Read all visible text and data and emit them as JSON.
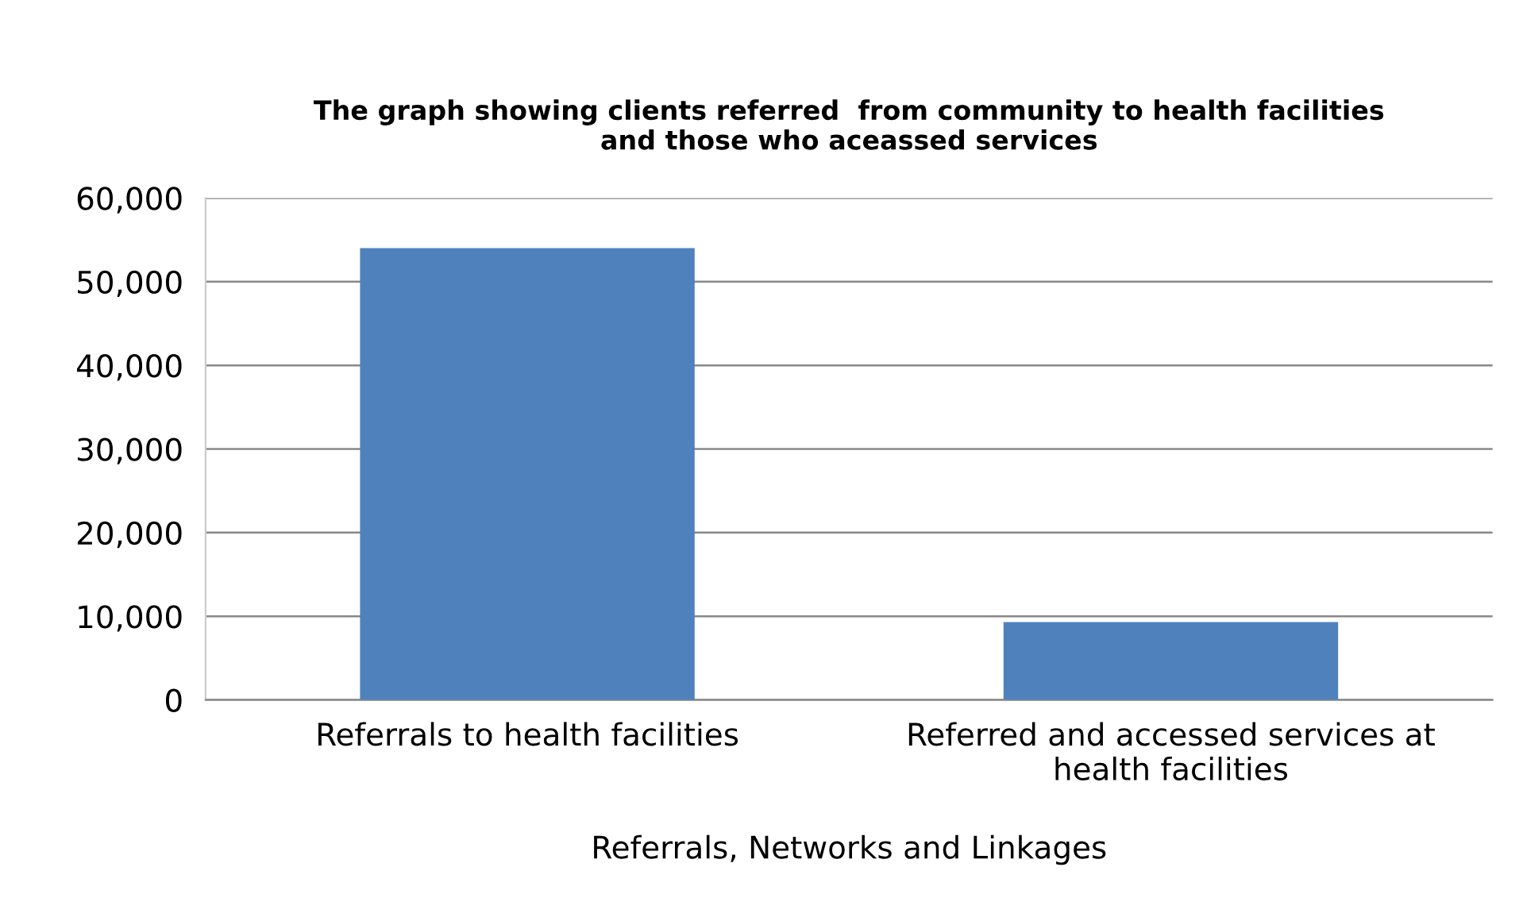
{
  "chart_data": {
    "type": "bar",
    "title": "The graph showing clients referred  from community to health facilities\nand those who aceassed services",
    "categories": [
      "Referrals to health facilities",
      "Referred and accessed services at\nhealth facilities"
    ],
    "values": [
      54000,
      9300
    ],
    "color": "#4f81bd",
    "xlabel": "Referrals, Networks and Linkages",
    "ylim": [
      0,
      60000
    ],
    "yticks": [
      {
        "value": 0,
        "label": "0"
      },
      {
        "value": 10000,
        "label": "10,000"
      },
      {
        "value": 20000,
        "label": "20,000"
      },
      {
        "value": 30000,
        "label": "30,000"
      },
      {
        "value": 40000,
        "label": "40,000"
      },
      {
        "value": 50000,
        "label": "50,000"
      },
      {
        "value": 60000,
        "label": "60,000"
      }
    ],
    "grid": "y",
    "legend": false
  }
}
